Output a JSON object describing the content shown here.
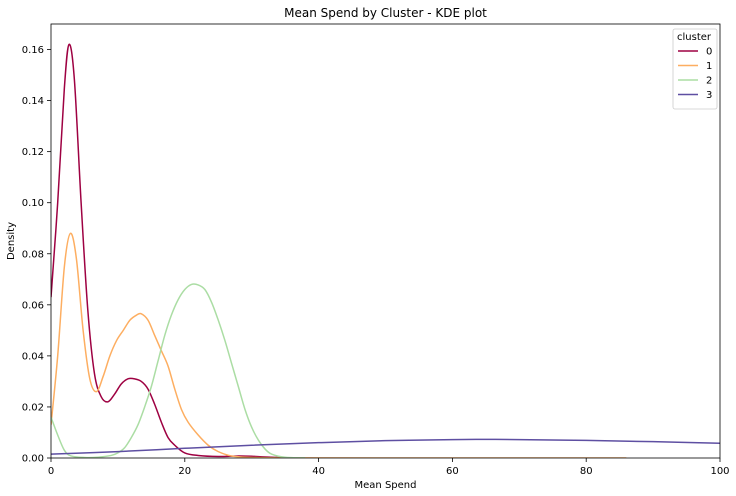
{
  "chart_data": {
    "type": "line",
    "title": "Mean Spend by Cluster - KDE plot",
    "xlabel": "Mean Spend",
    "ylabel": "Density",
    "xlim": [
      0,
      100
    ],
    "ylim": [
      0,
      0.17
    ],
    "xticks": [
      0,
      20,
      40,
      60,
      80,
      100
    ],
    "xtick_labels": [
      "0",
      "20",
      "40",
      "60",
      "80",
      "100"
    ],
    "yticks": [
      0,
      0.02,
      0.04,
      0.06,
      0.08,
      0.1,
      0.12,
      0.14,
      0.16
    ],
    "ytick_labels": [
      "0.00",
      "0.02",
      "0.04",
      "0.06",
      "0.08",
      "0.10",
      "0.12",
      "0.14",
      "0.16"
    ],
    "grid": false,
    "legend": {
      "title": "cluster",
      "position": "top-right"
    },
    "series": [
      {
        "name": "0",
        "color": "#9e0142",
        "points": [
          [
            0,
            0.063
          ],
          [
            1,
            0.1
          ],
          [
            2,
            0.145
          ],
          [
            2.7,
            0.162
          ],
          [
            3.5,
            0.148
          ],
          [
            4.5,
            0.1
          ],
          [
            5.5,
            0.058
          ],
          [
            6.5,
            0.033
          ],
          [
            7.5,
            0.024
          ],
          [
            8.5,
            0.022
          ],
          [
            9.5,
            0.025
          ],
          [
            10.5,
            0.029
          ],
          [
            11.5,
            0.031
          ],
          [
            12.5,
            0.031
          ],
          [
            13.5,
            0.03
          ],
          [
            14.5,
            0.027
          ],
          [
            15.5,
            0.021
          ],
          [
            16.5,
            0.014
          ],
          [
            17.5,
            0.008
          ],
          [
            18.5,
            0.005
          ],
          [
            20,
            0.002
          ],
          [
            22,
            0.001
          ],
          [
            25,
            0.0006
          ],
          [
            28,
            0.0008
          ],
          [
            30,
            0.0007
          ],
          [
            32,
            0.0004
          ],
          [
            35,
            0.0001
          ]
        ]
      },
      {
        "name": "1",
        "color": "#fdae61",
        "points": [
          [
            0,
            0.013
          ],
          [
            1,
            0.04
          ],
          [
            2,
            0.075
          ],
          [
            2.9,
            0.088
          ],
          [
            3.8,
            0.078
          ],
          [
            4.8,
            0.05
          ],
          [
            5.8,
            0.031
          ],
          [
            6.8,
            0.026
          ],
          [
            7.8,
            0.032
          ],
          [
            8.8,
            0.04
          ],
          [
            9.8,
            0.046
          ],
          [
            10.8,
            0.05
          ],
          [
            11.8,
            0.054
          ],
          [
            12.8,
            0.056
          ],
          [
            13.5,
            0.0565
          ],
          [
            14.5,
            0.054
          ],
          [
            15.5,
            0.048
          ],
          [
            16.5,
            0.042
          ],
          [
            17.5,
            0.036
          ],
          [
            18.5,
            0.027
          ],
          [
            19.5,
            0.019
          ],
          [
            20.5,
            0.014
          ],
          [
            22,
            0.009
          ],
          [
            23.5,
            0.005
          ],
          [
            25,
            0.0025
          ],
          [
            27,
            0.0008
          ],
          [
            30,
            0.0002
          ],
          [
            35,
            5e-05
          ],
          [
            50,
            0.0
          ],
          [
            86,
            0.0
          ]
        ]
      },
      {
        "name": "2",
        "color": "#abdda4",
        "points": [
          [
            0,
            0.016
          ],
          [
            1,
            0.009
          ],
          [
            2,
            0.003
          ],
          [
            3,
            0.0008
          ],
          [
            5,
            0.0002
          ],
          [
            7,
            0.0003
          ],
          [
            9,
            0.001
          ],
          [
            10,
            0.002
          ],
          [
            11,
            0.004
          ],
          [
            12,
            0.008
          ],
          [
            13,
            0.013
          ],
          [
            14,
            0.02
          ],
          [
            15,
            0.028
          ],
          [
            16,
            0.038
          ],
          [
            17,
            0.048
          ],
          [
            18,
            0.056
          ],
          [
            19,
            0.062
          ],
          [
            20,
            0.066
          ],
          [
            21,
            0.068
          ],
          [
            22,
            0.0678
          ],
          [
            23,
            0.066
          ],
          [
            24,
            0.061
          ],
          [
            25,
            0.054
          ],
          [
            26,
            0.046
          ],
          [
            27,
            0.037
          ],
          [
            28,
            0.028
          ],
          [
            29,
            0.019
          ],
          [
            30,
            0.012
          ],
          [
            31,
            0.007
          ],
          [
            32,
            0.0035
          ],
          [
            33,
            0.0015
          ],
          [
            35,
            0.0003
          ],
          [
            38,
            5e-05
          ]
        ]
      },
      {
        "name": "3",
        "color": "#5e4fa2",
        "points": [
          [
            0,
            0.0015
          ],
          [
            10,
            0.0025
          ],
          [
            20,
            0.0038
          ],
          [
            30,
            0.005
          ],
          [
            40,
            0.006
          ],
          [
            50,
            0.0068
          ],
          [
            60,
            0.0072
          ],
          [
            65,
            0.0073
          ],
          [
            70,
            0.0072
          ],
          [
            80,
            0.0069
          ],
          [
            90,
            0.0064
          ],
          [
            100,
            0.0058
          ]
        ]
      }
    ]
  }
}
